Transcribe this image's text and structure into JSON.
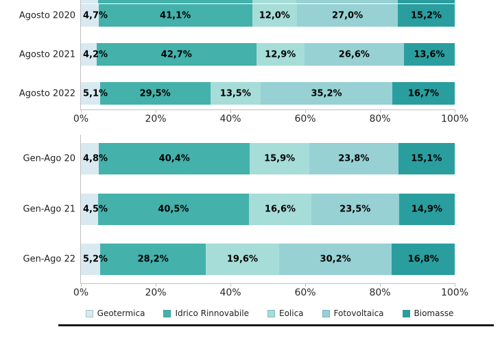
{
  "colors": {
    "geotermica": "#d9e9f1",
    "idrico": "#44b1ab",
    "eolica": "#a6ddd8",
    "fotovoltaica": "#97d1d3",
    "biomasse": "#2a9e9f",
    "axis": "#bfbfbf",
    "label_text": "#000000"
  },
  "x_axis_ticks": [
    "0%",
    "20%",
    "40%",
    "60%",
    "80%",
    "100%"
  ],
  "legend": [
    {
      "label": "Geotermica",
      "color_key": "geotermica"
    },
    {
      "label": "Idrico Rinnovabile",
      "color_key": "idrico"
    },
    {
      "label": "Eolica",
      "color_key": "eolica"
    },
    {
      "label": "Fotovoltaica",
      "color_key": "fotovoltaica"
    },
    {
      "label": "Biomasse",
      "color_key": "biomasse"
    }
  ],
  "cropped_top_bar": {
    "segments_pct": [
      4.6,
      41.2,
      11.9,
      27.0,
      15.3
    ]
  },
  "chart_data": [
    {
      "type": "bar",
      "orientation": "horizontal",
      "stacked": true,
      "unit": "%",
      "xlim": [
        0,
        100
      ],
      "x_ticks": [
        0,
        20,
        40,
        60,
        80,
        100
      ],
      "categories": [
        "Agosto 2020",
        "Agosto 2021",
        "Agosto 2022"
      ],
      "series": [
        {
          "name": "Geotermica",
          "values": [
            4.7,
            4.2,
            5.1
          ]
        },
        {
          "name": "Idrico Rinnovabile",
          "values": [
            41.1,
            42.7,
            29.5
          ]
        },
        {
          "name": "Eolica",
          "values": [
            12.0,
            12.9,
            13.5
          ]
        },
        {
          "name": "Fotovoltaica",
          "values": [
            27.0,
            26.6,
            35.2
          ]
        },
        {
          "name": "Biomasse",
          "values": [
            15.2,
            13.6,
            16.7
          ]
        }
      ]
    },
    {
      "type": "bar",
      "orientation": "horizontal",
      "stacked": true,
      "unit": "%",
      "xlim": [
        0,
        100
      ],
      "x_ticks": [
        0,
        20,
        40,
        60,
        80,
        100
      ],
      "categories": [
        "Gen-Ago 20",
        "Gen-Ago 21",
        "Gen-Ago 22"
      ],
      "series": [
        {
          "name": "Geotermica",
          "values": [
            4.8,
            4.5,
            5.2
          ]
        },
        {
          "name": "Idrico Rinnovabile",
          "values": [
            40.4,
            40.5,
            28.2
          ]
        },
        {
          "name": "Eolica",
          "values": [
            15.9,
            16.6,
            19.6
          ]
        },
        {
          "name": "Fotovoltaica",
          "values": [
            23.8,
            23.5,
            30.2
          ]
        },
        {
          "name": "Biomasse",
          "values": [
            15.1,
            14.9,
            16.8
          ]
        }
      ]
    }
  ]
}
